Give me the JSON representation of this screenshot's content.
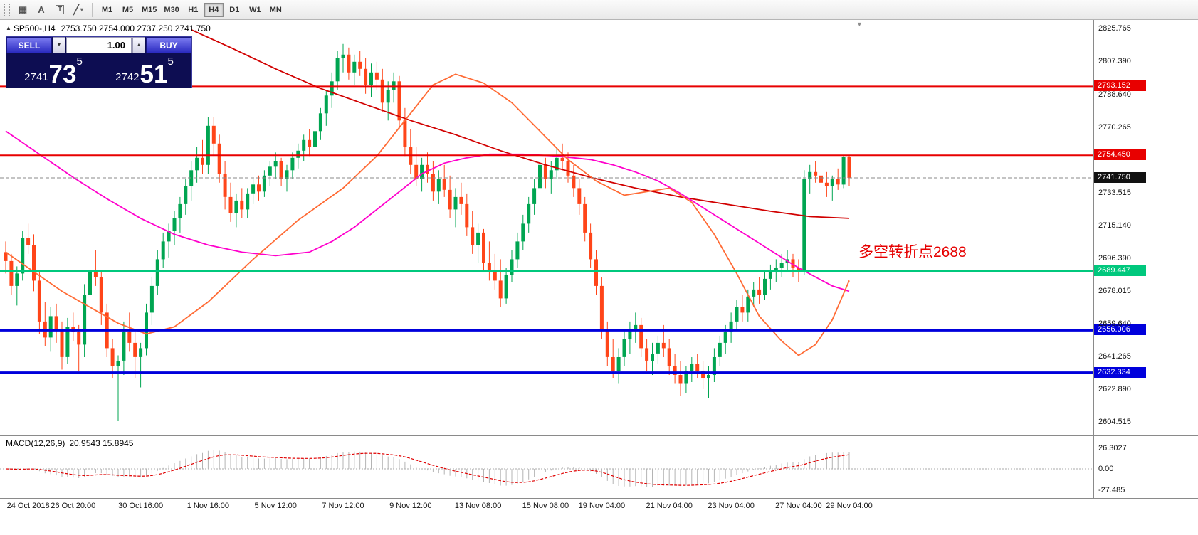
{
  "toolbar": {
    "tools": {
      "grid_glyph": "▦",
      "a_label": "A",
      "t_label": "T",
      "line_glyph": "╱",
      "dropdown_glyph": "▾"
    },
    "timeframes": [
      "M1",
      "M5",
      "M15",
      "M30",
      "H1",
      "H4",
      "D1",
      "W1",
      "MN"
    ],
    "active_timeframe": "H4"
  },
  "chart": {
    "marker_glyph": "▲",
    "symbol_title": "SP500-,H4",
    "ohlc_text": "2753.750 2754.000 2737.250 2741.750",
    "shift_marker": "▼",
    "annotation": "多空转折点2688"
  },
  "trade_panel": {
    "sell_label": "SELL",
    "buy_label": "BUY",
    "volume": "1.00",
    "volume_down_glyph": "▼",
    "volume_up_glyph": "▲",
    "bid": {
      "small": "2741",
      "big": "73",
      "sup": "5"
    },
    "ask": {
      "small": "2742",
      "big": "51",
      "sup": "5"
    }
  },
  "macd_panel": {
    "title": "MACD(12,26,9)",
    "values": "20.9543 15.8945",
    "axis_labels": [
      "26.3027",
      "0.00",
      "-27.485"
    ]
  },
  "chart_data": {
    "type": "candlestick",
    "title": "SP500- H4",
    "symbol": "SP500-",
    "timeframe": "H4",
    "ylim": [
      2597.0,
      2830.5
    ],
    "price_axis_labels": [
      2825.765,
      2807.39,
      2788.64,
      2770.265,
      2733.515,
      2715.14,
      2696.39,
      2678.015,
      2659.64,
      2641.265,
      2622.89,
      2604.515
    ],
    "colors": {
      "bull": "#00a551",
      "bear": "#ff4519"
    },
    "current_price": 2741.75,
    "hlines": [
      {
        "price": 2793.152,
        "color": "#e80000",
        "width": 2
      },
      {
        "price": 2754.45,
        "color": "#e80000",
        "width": 2
      },
      {
        "price": 2689.447,
        "color": "#00c87d",
        "width": 3
      },
      {
        "price": 2656.006,
        "color": "#0000dc",
        "width": 3
      },
      {
        "price": 2632.334,
        "color": "#0000dc",
        "width": 3
      }
    ],
    "overlays": [
      {
        "name": "slow-red",
        "color": "#d10000",
        "width": 1.8,
        "points": [
          [
            33,
            2825
          ],
          [
            40,
            2815
          ],
          [
            48,
            2803
          ],
          [
            56,
            2792
          ],
          [
            64,
            2783
          ],
          [
            72,
            2774
          ],
          [
            80,
            2766
          ],
          [
            88,
            2757
          ],
          [
            96,
            2749
          ],
          [
            104,
            2742
          ],
          [
            112,
            2736
          ],
          [
            120,
            2731
          ],
          [
            128,
            2727
          ],
          [
            136,
            2723
          ],
          [
            143,
            2720
          ],
          [
            150,
            2719
          ]
        ]
      },
      {
        "name": "mid-magenta",
        "color": "#ff00cc",
        "width": 1.8,
        "points": [
          [
            0,
            2768
          ],
          [
            6,
            2755
          ],
          [
            12,
            2742
          ],
          [
            18,
            2730
          ],
          [
            24,
            2719
          ],
          [
            30,
            2710
          ],
          [
            36,
            2704
          ],
          [
            42,
            2700
          ],
          [
            48,
            2698
          ],
          [
            54,
            2700
          ],
          [
            58,
            2706
          ],
          [
            62,
            2714
          ],
          [
            66,
            2724
          ],
          [
            70,
            2734
          ],
          [
            74,
            2744
          ],
          [
            78,
            2750
          ],
          [
            82,
            2753
          ],
          [
            86,
            2755
          ],
          [
            92,
            2755
          ],
          [
            98,
            2754
          ],
          [
            104,
            2752
          ],
          [
            108,
            2749
          ],
          [
            112,
            2745
          ],
          [
            116,
            2740
          ],
          [
            120,
            2733
          ],
          [
            124,
            2725
          ],
          [
            128,
            2717
          ],
          [
            132,
            2709
          ],
          [
            136,
            2701
          ],
          [
            140,
            2693
          ],
          [
            144,
            2686
          ],
          [
            147,
            2681
          ],
          [
            150,
            2678
          ]
        ]
      },
      {
        "name": "fast-orange",
        "color": "#ff6b35",
        "width": 1.8,
        "points": [
          [
            0,
            2700
          ],
          [
            10,
            2678
          ],
          [
            20,
            2660
          ],
          [
            25,
            2654
          ],
          [
            30,
            2658
          ],
          [
            36,
            2672
          ],
          [
            44,
            2696
          ],
          [
            52,
            2718
          ],
          [
            60,
            2736
          ],
          [
            66,
            2754
          ],
          [
            72,
            2778
          ],
          [
            76,
            2794
          ],
          [
            80,
            2800
          ],
          [
            85,
            2795
          ],
          [
            90,
            2784
          ],
          [
            95,
            2768
          ],
          [
            100,
            2752
          ],
          [
            105,
            2740
          ],
          [
            110,
            2732
          ],
          [
            114,
            2734
          ],
          [
            118,
            2736
          ],
          [
            122,
            2728
          ],
          [
            126,
            2710
          ],
          [
            130,
            2688
          ],
          [
            134,
            2664
          ],
          [
            138,
            2650
          ],
          [
            141,
            2642
          ],
          [
            144,
            2648
          ],
          [
            147,
            2662
          ],
          [
            150,
            2684
          ]
        ]
      }
    ],
    "candles": [
      [
        2700,
        2706,
        2688,
        2695
      ],
      [
        2695,
        2699,
        2676,
        2681
      ],
      [
        2681,
        2692,
        2670,
        2688
      ],
      [
        2688,
        2712,
        2684,
        2708
      ],
      [
        2708,
        2716,
        2699,
        2704
      ],
      [
        2704,
        2710,
        2678,
        2684
      ],
      [
        2684,
        2690,
        2654,
        2661
      ],
      [
        2661,
        2672,
        2647,
        2652
      ],
      [
        2652,
        2669,
        2644,
        2664
      ],
      [
        2664,
        2671,
        2649,
        2656
      ],
      [
        2656,
        2661,
        2634,
        2641
      ],
      [
        2641,
        2663,
        2637,
        2658
      ],
      [
        2658,
        2666,
        2650,
        2655
      ],
      [
        2655,
        2659,
        2633,
        2648
      ],
      [
        2648,
        2682,
        2641,
        2676
      ],
      [
        2676,
        2696,
        2669,
        2690
      ],
      [
        2690,
        2701,
        2681,
        2686
      ],
      [
        2686,
        2689,
        2659,
        2666
      ],
      [
        2666,
        2671,
        2641,
        2646
      ],
      [
        2646,
        2651,
        2629,
        2636
      ],
      [
        2636,
        2642,
        2605,
        2639
      ],
      [
        2639,
        2661,
        2631,
        2655
      ],
      [
        2655,
        2666,
        2644,
        2649
      ],
      [
        2649,
        2655,
        2629,
        2641
      ],
      [
        2641,
        2649,
        2624,
        2646
      ],
      [
        2646,
        2671,
        2642,
        2666
      ],
      [
        2666,
        2686,
        2659,
        2681
      ],
      [
        2681,
        2701,
        2676,
        2696
      ],
      [
        2696,
        2711,
        2691,
        2706
      ],
      [
        2706,
        2716,
        2697,
        2712
      ],
      [
        2712,
        2723,
        2704,
        2719
      ],
      [
        2719,
        2731,
        2711,
        2727
      ],
      [
        2727,
        2741,
        2721,
        2737
      ],
      [
        2737,
        2751,
        2729,
        2746
      ],
      [
        2746,
        2759,
        2739,
        2753
      ],
      [
        2753,
        2763,
        2744,
        2749
      ],
      [
        2749,
        2776,
        2744,
        2771
      ],
      [
        2771,
        2776,
        2754,
        2761
      ],
      [
        2761,
        2766,
        2739,
        2744
      ],
      [
        2744,
        2751,
        2724,
        2731
      ],
      [
        2731,
        2739,
        2717,
        2722
      ],
      [
        2722,
        2733,
        2714,
        2729
      ],
      [
        2729,
        2736,
        2719,
        2724
      ],
      [
        2724,
        2736,
        2719,
        2733
      ],
      [
        2733,
        2741,
        2727,
        2738
      ],
      [
        2738,
        2743,
        2729,
        2734
      ],
      [
        2734,
        2746,
        2731,
        2743
      ],
      [
        2743,
        2751,
        2737,
        2748
      ],
      [
        2748,
        2756,
        2741,
        2751
      ],
      [
        2751,
        2753,
        2737,
        2741
      ],
      [
        2741,
        2749,
        2734,
        2746
      ],
      [
        2746,
        2756,
        2741,
        2753
      ],
      [
        2753,
        2761,
        2747,
        2757
      ],
      [
        2757,
        2766,
        2751,
        2763
      ],
      [
        2763,
        2769,
        2754,
        2759
      ],
      [
        2759,
        2771,
        2754,
        2768
      ],
      [
        2768,
        2781,
        2763,
        2778
      ],
      [
        2778,
        2791,
        2771,
        2788
      ],
      [
        2788,
        2801,
        2781,
        2796
      ],
      [
        2796,
        2813,
        2791,
        2809
      ],
      [
        2809,
        2817,
        2801,
        2811
      ],
      [
        2811,
        2815,
        2797,
        2801
      ],
      [
        2801,
        2811,
        2794,
        2807
      ],
      [
        2807,
        2813,
        2799,
        2803
      ],
      [
        2803,
        2809,
        2789,
        2794
      ],
      [
        2794,
        2806,
        2787,
        2801
      ],
      [
        2801,
        2807,
        2791,
        2797
      ],
      [
        2797,
        2803,
        2779,
        2784
      ],
      [
        2784,
        2796,
        2774,
        2791
      ],
      [
        2791,
        2801,
        2784,
        2796
      ],
      [
        2796,
        2799,
        2769,
        2774
      ],
      [
        2774,
        2781,
        2754,
        2759
      ],
      [
        2759,
        2769,
        2744,
        2749
      ],
      [
        2749,
        2759,
        2737,
        2741
      ],
      [
        2741,
        2753,
        2734,
        2749
      ],
      [
        2749,
        2756,
        2739,
        2744
      ],
      [
        2744,
        2751,
        2729,
        2734
      ],
      [
        2734,
        2746,
        2727,
        2741
      ],
      [
        2741,
        2749,
        2731,
        2735
      ],
      [
        2735,
        2743,
        2719,
        2724
      ],
      [
        2724,
        2736,
        2714,
        2731
      ],
      [
        2731,
        2739,
        2721,
        2727
      ],
      [
        2727,
        2733,
        2709,
        2714
      ],
      [
        2714,
        2723,
        2699,
        2704
      ],
      [
        2704,
        2716,
        2694,
        2711
      ],
      [
        2711,
        2713,
        2689,
        2694
      ],
      [
        2694,
        2706,
        2684,
        2689
      ],
      [
        2689,
        2699,
        2679,
        2684
      ],
      [
        2684,
        2696,
        2669,
        2674
      ],
      [
        2674,
        2691,
        2671,
        2687
      ],
      [
        2687,
        2701,
        2683,
        2696
      ],
      [
        2696,
        2711,
        2691,
        2706
      ],
      [
        2706,
        2721,
        2701,
        2716
      ],
      [
        2716,
        2731,
        2711,
        2727
      ],
      [
        2727,
        2741,
        2721,
        2736
      ],
      [
        2736,
        2756,
        2731,
        2749
      ],
      [
        2749,
        2753,
        2736,
        2741
      ],
      [
        2741,
        2751,
        2733,
        2746
      ],
      [
        2746,
        2759,
        2741,
        2753
      ],
      [
        2753,
        2761,
        2746,
        2751
      ],
      [
        2751,
        2756,
        2739,
        2743
      ],
      [
        2743,
        2749,
        2731,
        2736
      ],
      [
        2736,
        2741,
        2721,
        2727
      ],
      [
        2727,
        2731,
        2706,
        2711
      ],
      [
        2711,
        2716,
        2691,
        2696
      ],
      [
        2696,
        2701,
        2676,
        2681
      ],
      [
        2681,
        2686,
        2651,
        2656
      ],
      [
        2656,
        2661,
        2636,
        2641
      ],
      [
        2641,
        2651,
        2629,
        2633
      ],
      [
        2633,
        2646,
        2626,
        2641
      ],
      [
        2641,
        2656,
        2636,
        2651
      ],
      [
        2651,
        2661,
        2643,
        2656
      ],
      [
        2656,
        2666,
        2649,
        2659
      ],
      [
        2659,
        2663,
        2641,
        2646
      ],
      [
        2646,
        2651,
        2633,
        2639
      ],
      [
        2639,
        2649,
        2631,
        2643
      ],
      [
        2643,
        2653,
        2637,
        2649
      ],
      [
        2649,
        2659,
        2641,
        2646
      ],
      [
        2646,
        2651,
        2631,
        2636
      ],
      [
        2636,
        2643,
        2626,
        2631
      ],
      [
        2631,
        2639,
        2619,
        2626
      ],
      [
        2626,
        2636,
        2621,
        2633
      ],
      [
        2633,
        2641,
        2627,
        2637
      ],
      [
        2637,
        2643,
        2629,
        2633
      ],
      [
        2633,
        2639,
        2623,
        2629
      ],
      [
        2629,
        2636,
        2618,
        2631
      ],
      [
        2631,
        2646,
        2627,
        2641
      ],
      [
        2641,
        2653,
        2636,
        2649
      ],
      [
        2649,
        2659,
        2643,
        2655
      ],
      [
        2655,
        2666,
        2649,
        2661
      ],
      [
        2661,
        2673,
        2656,
        2669
      ],
      [
        2669,
        2676,
        2661,
        2666
      ],
      [
        2666,
        2679,
        2661,
        2675
      ],
      [
        2675,
        2683,
        2669,
        2679
      ],
      [
        2679,
        2686,
        2671,
        2676
      ],
      [
        2676,
        2689,
        2673,
        2685
      ],
      [
        2685,
        2693,
        2679,
        2689
      ],
      [
        2689,
        2696,
        2683,
        2691
      ],
      [
        2691,
        2699,
        2686,
        2694
      ],
      [
        2694,
        2701,
        2689,
        2696
      ],
      [
        2696,
        2699,
        2686,
        2691
      ],
      [
        2691,
        2696,
        2683,
        2689
      ],
      [
        2689,
        2746,
        2687,
        2741
      ],
      [
        2741,
        2749,
        2733,
        2745
      ],
      [
        2745,
        2751,
        2739,
        2743
      ],
      [
        2743,
        2747,
        2736,
        2739
      ],
      [
        2739,
        2745,
        2731,
        2737
      ],
      [
        2737,
        2743,
        2729,
        2741
      ],
      [
        2741,
        2747,
        2735,
        2738
      ],
      [
        2738,
        2754.4,
        2736,
        2753.75
      ],
      [
        2753.75,
        2754.0,
        2737.25,
        2741.75
      ]
    ],
    "time_labels": [
      {
        "text": "24 Oct 2018",
        "i": 4
      },
      {
        "text": "26 Oct 20:00",
        "i": 12
      },
      {
        "text": "30 Oct 16:00",
        "i": 24
      },
      {
        "text": "1 Nov 16:00",
        "i": 36
      },
      {
        "text": "5 Nov 12:00",
        "i": 48
      },
      {
        "text": "7 Nov 12:00",
        "i": 60
      },
      {
        "text": "9 Nov 12:00",
        "i": 72
      },
      {
        "text": "13 Nov 08:00",
        "i": 84
      },
      {
        "text": "15 Nov 08:00",
        "i": 96
      },
      {
        "text": "19 Nov 04:00",
        "i": 106
      },
      {
        "text": "21 Nov 04:00",
        "i": 118
      },
      {
        "text": "23 Nov 04:00",
        "i": 129
      },
      {
        "text": "27 Nov 04:00",
        "i": 141
      },
      {
        "text": "29 Nov 04:00",
        "i": 150
      }
    ],
    "macd": {
      "params": [
        12,
        26,
        9
      ],
      "max": 26.3027,
      "min": -27.485,
      "hist_color": "#b4b4b4",
      "signal_color": "#e00000"
    }
  }
}
